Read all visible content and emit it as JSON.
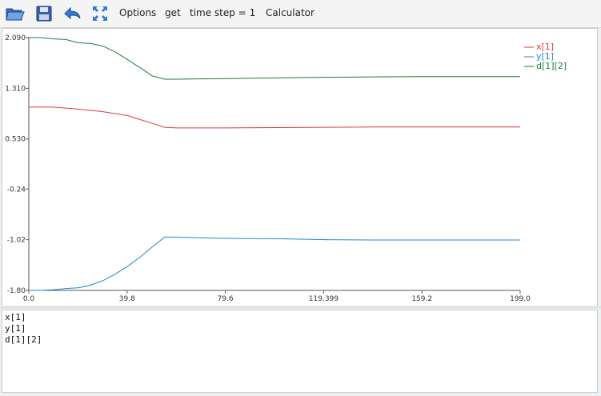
{
  "toolbar": {
    "icons": [
      "open-folder-icon",
      "save-floppy-icon",
      "back-arrow-icon",
      "expand-arrows-icon"
    ],
    "menu": {
      "options": "Options",
      "get": "get",
      "time_step": "time step = 1",
      "calculator": "Calculator"
    }
  },
  "chart_data": {
    "type": "line",
    "x_ticks": [
      "0.0",
      "39.8",
      "79.6",
      "119.399",
      "159.2",
      "199.0"
    ],
    "y_ticks": [
      "2.090",
      "1.310",
      "0.530",
      "-0.24",
      "-1.02",
      "-1.80"
    ],
    "xlim": [
      0,
      199.0
    ],
    "ylim": [
      -1.8,
      2.09
    ],
    "grid": false,
    "legend_position": "top-right",
    "series": [
      {
        "name": "x[1]",
        "color": "#e0393e",
        "points": [
          [
            0,
            1.02
          ],
          [
            10,
            1.02
          ],
          [
            20,
            0.99
          ],
          [
            30,
            0.95
          ],
          [
            40,
            0.89
          ],
          [
            45,
            0.83
          ],
          [
            50,
            0.77
          ],
          [
            55,
            0.71
          ],
          [
            60,
            0.7
          ],
          [
            80,
            0.7
          ],
          [
            100,
            0.705
          ],
          [
            120,
            0.71
          ],
          [
            140,
            0.715
          ],
          [
            160,
            0.715
          ],
          [
            199,
            0.715
          ]
        ]
      },
      {
        "name": "y[1]",
        "color": "#1f86c8",
        "points": [
          [
            0,
            -1.8
          ],
          [
            5,
            -1.8
          ],
          [
            10,
            -1.79
          ],
          [
            15,
            -1.77
          ],
          [
            20,
            -1.76
          ],
          [
            25,
            -1.72
          ],
          [
            30,
            -1.65
          ],
          [
            35,
            -1.55
          ],
          [
            40,
            -1.43
          ],
          [
            45,
            -1.29
          ],
          [
            50,
            -1.13
          ],
          [
            55,
            -0.98
          ],
          [
            60,
            -0.98
          ],
          [
            70,
            -0.99
          ],
          [
            80,
            -1.0
          ],
          [
            100,
            -1.005
          ],
          [
            120,
            -1.02
          ],
          [
            140,
            -1.025
          ],
          [
            160,
            -1.025
          ],
          [
            199,
            -1.025
          ]
        ]
      },
      {
        "name": "d[1][2]",
        "color": "#1d7a3a",
        "points": [
          [
            0,
            2.09
          ],
          [
            5,
            2.09
          ],
          [
            10,
            2.07
          ],
          [
            15,
            2.06
          ],
          [
            20,
            2.01
          ],
          [
            25,
            2.0
          ],
          [
            30,
            1.96
          ],
          [
            35,
            1.87
          ],
          [
            40,
            1.75
          ],
          [
            45,
            1.63
          ],
          [
            50,
            1.5
          ],
          [
            55,
            1.45
          ],
          [
            60,
            1.45
          ],
          [
            80,
            1.46
          ],
          [
            100,
            1.47
          ],
          [
            120,
            1.48
          ],
          [
            140,
            1.485
          ],
          [
            160,
            1.49
          ],
          [
            199,
            1.49
          ]
        ]
      }
    ]
  },
  "variables": [
    "x[1]",
    "y[1]",
    "d[1][2]"
  ]
}
